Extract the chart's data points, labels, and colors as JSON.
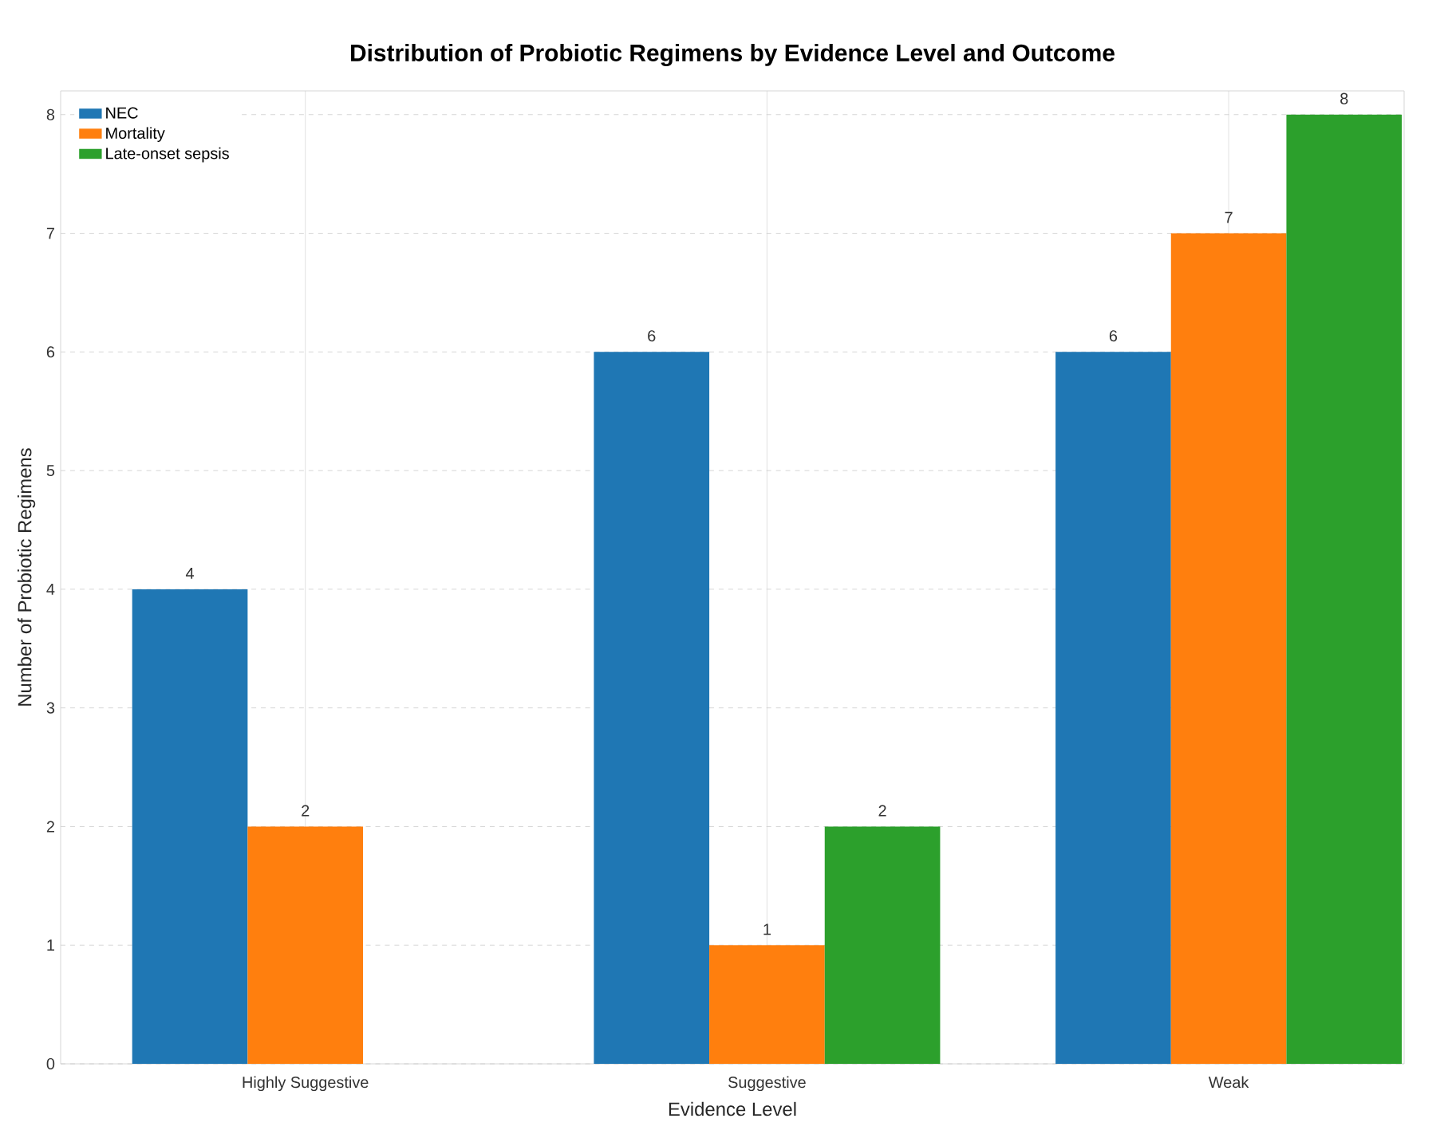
{
  "chart_data": {
    "type": "bar",
    "title": "Distribution of Probiotic Regimens by Evidence Level and Outcome",
    "xlabel": "Evidence Level",
    "ylabel": "Number of Probiotic Regimens",
    "categories": [
      "Highly Suggestive",
      "Suggestive",
      "Weak"
    ],
    "series": [
      {
        "name": "NEC",
        "color": "#1f77b4",
        "values": [
          4,
          6,
          6
        ]
      },
      {
        "name": "Mortality",
        "color": "#ff7f0e",
        "values": [
          2,
          1,
          7
        ]
      },
      {
        "name": "Late-onset sepsis",
        "color": "#2ca02c",
        "values": [
          null,
          2,
          8
        ]
      }
    ],
    "ylim": [
      0,
      8.2
    ],
    "yticks": [
      0,
      1,
      2,
      3,
      4,
      5,
      6,
      7,
      8
    ],
    "grid": true,
    "legend": "top left",
    "data_labels": true
  }
}
